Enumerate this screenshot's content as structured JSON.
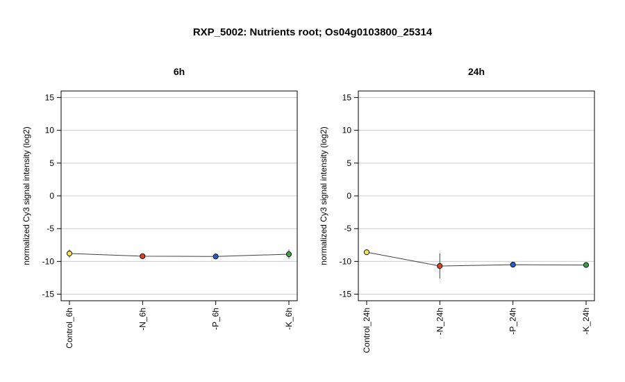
{
  "figure": {
    "title": "RXP_5002: Nutrients root; Os04g0103800_25314"
  },
  "colors": {
    "line": "#404040",
    "grid": "#cccccc",
    "frame": "#000000",
    "Control": "#f2e64a",
    "N": "#e0401f",
    "P": "#1f5fcc",
    "K": "#3aa33a"
  },
  "chart_data": [
    {
      "type": "line",
      "title": "6h",
      "ylabel": "normalized Cy3 signal intensity (log2)",
      "xlabel": "",
      "ylim": [
        -16,
        16
      ],
      "yticks": [
        -15,
        -10,
        -5,
        0,
        5,
        10,
        15
      ],
      "grid": true,
      "categories": [
        "Control_6h",
        "-N_6h",
        "-P_6h",
        "-K_6h"
      ],
      "series": [
        {
          "values": [
            -8.8,
            -9.2,
            -9.25,
            -8.9
          ],
          "errors": [
            0.6,
            0.2,
            0.4,
            0.7
          ],
          "point_colors": [
            "Control",
            "N",
            "P",
            "K"
          ]
        }
      ]
    },
    {
      "type": "line",
      "title": "24h",
      "ylabel": "normalized Cy3 signal intensity (log2)",
      "xlabel": "",
      "ylim": [
        -16,
        16
      ],
      "yticks": [
        -15,
        -10,
        -5,
        0,
        5,
        10,
        15
      ],
      "grid": true,
      "categories": [
        "Control_24h",
        "-N_24h",
        "-P_24h",
        "-K_24h"
      ],
      "series": [
        {
          "values": [
            -8.6,
            -10.7,
            -10.5,
            -10.55
          ],
          "errors": [
            0.3,
            1.9,
            0.2,
            0.2
          ],
          "point_colors": [
            "Control",
            "N",
            "P",
            "K"
          ]
        }
      ]
    }
  ]
}
